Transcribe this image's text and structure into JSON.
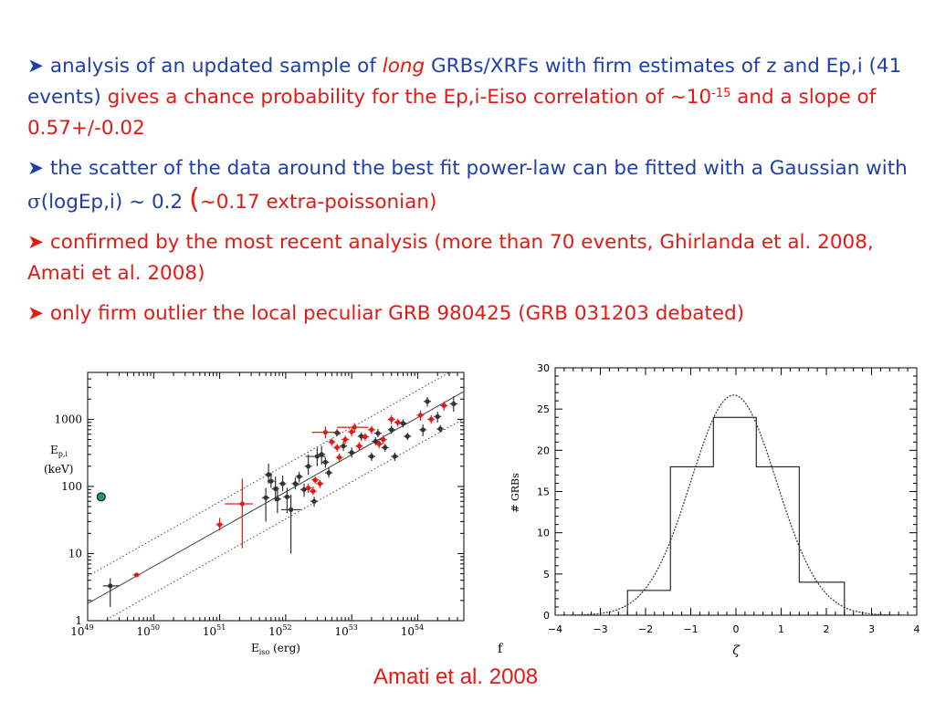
{
  "bullets": [
    {
      "arrow": "➤",
      "segments": [
        {
          "text": " analysis of an updated sample of ",
          "color": "blue"
        },
        {
          "text": "long",
          "color": "red",
          "italic": true
        },
        {
          "text": " GRBs/XRFs with firm estimates of z and Ep,i (41 events) ",
          "color": "blue"
        },
        {
          "text": "gives a chance probability for the Ep,i-Eiso correlation of ~10",
          "color": "red"
        },
        {
          "text": "-15",
          "color": "red",
          "sup": true
        },
        {
          "text": " and a slope of 0.57+/-0.02",
          "color": "red"
        }
      ]
    },
    {
      "arrow": "➤",
      "segments": [
        {
          "text": " the scatter of the data around the best fit power-law can be fitted with a Gaussian with ",
          "color": "blue"
        },
        {
          "text": "σ",
          "color": "blue",
          "sigma": true
        },
        {
          "text": "(logEp,i) ~ 0.2 ",
          "color": "blue"
        },
        {
          "text": "(",
          "color": "red",
          "big": true
        },
        {
          "text": "~0.17 extra-poissonian)",
          "color": "red"
        }
      ]
    },
    {
      "arrow": "➤",
      "segments": [
        {
          "text": " confirmed by the most recent analysis (more than 70 events, Ghirlanda et al. 2008, Amati et al. 2008)",
          "color": "red"
        }
      ]
    },
    {
      "arrow": "➤",
      "segments": [
        {
          "text": " only firm outlier the local peculiar GRB 980425 (GRB 031203 debated)",
          "color": "red"
        }
      ]
    }
  ],
  "credit": "Amati et al. 2008",
  "stray_mark": "f",
  "colors": {
    "blue": "#1f3fa8",
    "red": "#e21a14",
    "outlier": "#1a9a78"
  },
  "chart_data": [
    {
      "type": "scatter",
      "xscale": "log",
      "yscale": "log",
      "xlim": [
        1e+49,
        5e+54
      ],
      "ylim": [
        1,
        5000
      ],
      "x_ticks": [
        {
          "value": 1e+49,
          "base": "10",
          "exp": "49"
        },
        {
          "value": 1e+50,
          "base": "10",
          "exp": "50"
        },
        {
          "value": 1e+51,
          "base": "10",
          "exp": "51"
        },
        {
          "value": 1e+52,
          "base": "10",
          "exp": "52"
        },
        {
          "value": 1e+53,
          "base": "10",
          "exp": "53"
        },
        {
          "value": 1e+54,
          "base": "10",
          "exp": "54"
        }
      ],
      "y_ticks": [
        {
          "value": 1,
          "label": "1"
        },
        {
          "value": 10,
          "label": "10"
        },
        {
          "value": 100,
          "label": "100"
        },
        {
          "value": 1000,
          "label": "1000"
        }
      ],
      "xlabel": {
        "main": "E",
        "sub": "iso",
        "unit": " (erg)"
      },
      "ylabel": {
        "main": "E",
        "sub": "p,i",
        "unit": "(keV)"
      },
      "fit_lines": [
        {
          "name": "best fit",
          "style": "solid",
          "points": [
            [
              1e+49,
              1.8
            ],
            [
              5e+54,
              2600
            ]
          ]
        },
        {
          "name": "upper",
          "style": "dotted",
          "points": [
            [
              1e+49,
              4.6
            ],
            [
              5e+54,
              6600
            ]
          ]
        },
        {
          "name": "lower",
          "style": "dotted",
          "points": [
            [
              1e+49,
              0.72
            ],
            [
              5e+54,
              1020
            ]
          ]
        }
      ],
      "series": [
        {
          "color": "black",
          "points": [
            {
              "x": 2.2e+49,
              "y": 3.3,
              "ylo": 1.6,
              "yhi": 4.3,
              "xlo": 1.7e+49,
              "xhi": 3e+49
            },
            {
              "x": 5e+51,
              "y": 68,
              "ylo": 30,
              "yhi": 95
            },
            {
              "x": 5.5e+51,
              "y": 150,
              "ylo": 110,
              "yhi": 220
            },
            {
              "x": 6e+51,
              "y": 120,
              "ylo": 95,
              "yhi": 160
            },
            {
              "x": 7e+51,
              "y": 92,
              "ylo": 60,
              "yhi": 140
            },
            {
              "x": 7.5e+51,
              "y": 65,
              "ylo": 40,
              "yhi": 100
            },
            {
              "x": 9e+51,
              "y": 110,
              "ylo": 85,
              "yhi": 145
            },
            {
              "x": 1.05e+52,
              "y": 70,
              "ylo": 40,
              "yhi": 95
            },
            {
              "x": 1.2e+52,
              "y": 45,
              "ylo": 10,
              "yhi": 75,
              "xlo": 8.5e+51,
              "xhi": 1.7e+52
            },
            {
              "x": 1.4e+52,
              "y": 110,
              "ylo": 90,
              "yhi": 135
            },
            {
              "x": 1.6e+52,
              "y": 140,
              "ylo": 115,
              "yhi": 165
            },
            {
              "x": 1.9e+52,
              "y": 90,
              "ylo": 70,
              "yhi": 110
            },
            {
              "x": 2.2e+52,
              "y": 200,
              "ylo": 150,
              "yhi": 300
            },
            {
              "x": 2.7e+52,
              "y": 60,
              "ylo": 50,
              "yhi": 70
            },
            {
              "x": 3e+52,
              "y": 280,
              "ylo": 200,
              "yhi": 380,
              "xlo": 2e+52,
              "xhi": 4e+52
            },
            {
              "x": 3.5e+52,
              "y": 300,
              "ylo": 210,
              "yhi": 400
            },
            {
              "x": 4e+52,
              "y": 230,
              "ylo": 190,
              "yhi": 270
            },
            {
              "x": 4.5e+52,
              "y": 160,
              "ylo": 135,
              "yhi": 190
            },
            {
              "x": 6e+52,
              "y": 630,
              "ylo": 560,
              "yhi": 710
            },
            {
              "x": 7.5e+52,
              "y": 400,
              "ylo": 340,
              "yhi": 470
            },
            {
              "x": 1e+53,
              "y": 320,
              "ylo": 270,
              "yhi": 380
            },
            {
              "x": 1.4e+53,
              "y": 560,
              "ylo": 480,
              "yhi": 640
            },
            {
              "x": 2e+53,
              "y": 280,
              "ylo": 240,
              "yhi": 320
            },
            {
              "x": 2.3e+53,
              "y": 470,
              "ylo": 410,
              "yhi": 540
            },
            {
              "x": 2.5e+53,
              "y": 620,
              "ylo": 540,
              "yhi": 720
            },
            {
              "x": 3.2e+53,
              "y": 380,
              "ylo": 330,
              "yhi": 430
            },
            {
              "x": 4e+53,
              "y": 700,
              "ylo": 610,
              "yhi": 800
            },
            {
              "x": 4.5e+53,
              "y": 280,
              "ylo": 240,
              "yhi": 320
            },
            {
              "x": 6e+53,
              "y": 870,
              "ylo": 760,
              "yhi": 1000
            },
            {
              "x": 7e+53,
              "y": 560,
              "ylo": 490,
              "yhi": 630
            },
            {
              "x": 1.2e+54,
              "y": 700,
              "ylo": 560,
              "yhi": 840
            },
            {
              "x": 1.4e+54,
              "y": 1850,
              "ylo": 1550,
              "yhi": 2150
            },
            {
              "x": 2e+54,
              "y": 1100,
              "ylo": 900,
              "yhi": 1300
            },
            {
              "x": 2.2e+54,
              "y": 720,
              "ylo": 630,
              "yhi": 820
            },
            {
              "x": 3.5e+54,
              "y": 1700,
              "ylo": 1300,
              "yhi": 2200
            }
          ]
        },
        {
          "color": "red",
          "points": [
            {
              "x": 5.5e+49,
              "y": 4.8,
              "ylo": 4.6,
              "yhi": 5.0
            },
            {
              "x": 1e+51,
              "y": 27,
              "ylo": 22,
              "yhi": 34
            },
            {
              "x": 2.2e+51,
              "y": 55,
              "ylo": 12,
              "yhi": 130,
              "xlo": 1.2e+51,
              "xhi": 3.2e+51
            },
            {
              "x": 2.2e+52,
              "y": 95,
              "ylo": 80,
              "yhi": 110
            },
            {
              "x": 2.6e+52,
              "y": 85,
              "ylo": 75,
              "yhi": 100
            },
            {
              "x": 2.8e+52,
              "y": 125,
              "ylo": 110,
              "yhi": 140
            },
            {
              "x": 3.3e+52,
              "y": 110,
              "ylo": 95,
              "yhi": 125
            },
            {
              "x": 4e+52,
              "y": 640,
              "ylo": 520,
              "yhi": 780,
              "xlo": 2.5e+52,
              "xhi": 6e+52
            },
            {
              "x": 5e+52,
              "y": 460,
              "ylo": 400,
              "yhi": 520
            },
            {
              "x": 6e+52,
              "y": 380,
              "ylo": 330,
              "yhi": 430
            },
            {
              "x": 6.5e+52,
              "y": 270,
              "ylo": 230,
              "yhi": 310
            },
            {
              "x": 8e+52,
              "y": 500,
              "ylo": 430,
              "yhi": 570
            },
            {
              "x": 1e+53,
              "y": 650,
              "ylo": 560,
              "yhi": 740
            },
            {
              "x": 1.1e+53,
              "y": 760,
              "ylo": 650,
              "yhi": 880,
              "xlo": 6e+52,
              "xhi": 1.8e+53
            },
            {
              "x": 1.3e+53,
              "y": 400,
              "ylo": 340,
              "yhi": 460
            },
            {
              "x": 1.6e+53,
              "y": 550,
              "ylo": 480,
              "yhi": 620
            },
            {
              "x": 2e+53,
              "y": 700,
              "ylo": 610,
              "yhi": 800
            },
            {
              "x": 2.6e+53,
              "y": 430,
              "ylo": 370,
              "yhi": 490
            },
            {
              "x": 3e+53,
              "y": 500,
              "ylo": 430,
              "yhi": 580
            },
            {
              "x": 4e+53,
              "y": 1000,
              "ylo": 850,
              "yhi": 1150
            },
            {
              "x": 5e+53,
              "y": 900,
              "ylo": 780,
              "yhi": 1020
            },
            {
              "x": 1.1e+54,
              "y": 1150,
              "ylo": 950,
              "yhi": 1350
            },
            {
              "x": 1.6e+54,
              "y": 1000,
              "ylo": 860,
              "yhi": 1150
            },
            {
              "x": 2.5e+54,
              "y": 1600,
              "ylo": 1350,
              "yhi": 1850
            }
          ]
        }
      ],
      "outlier": {
        "x": 1.6e+49,
        "y": 70
      }
    },
    {
      "type": "bar",
      "subtype": "histogram",
      "xlabel": "ζ",
      "ylabel": "# GRBs",
      "xlim": [
        -4,
        4
      ],
      "ylim": [
        0,
        30
      ],
      "x_ticks": [
        "−4",
        "−3",
        "−2",
        "−1",
        "0",
        "1",
        "2",
        "3",
        "4"
      ],
      "y_ticks": [
        "0",
        "5",
        "10",
        "15",
        "20",
        "25",
        "30"
      ],
      "bins": [
        {
          "x0": -2.4,
          "x1": -1.45,
          "value": 3
        },
        {
          "x0": -1.45,
          "x1": -0.5,
          "value": 18
        },
        {
          "x0": -0.5,
          "x1": 0.45,
          "value": 24
        },
        {
          "x0": 0.45,
          "x1": 1.4,
          "value": 18
        },
        {
          "x0": 1.4,
          "x1": 2.4,
          "value": 4
        }
      ],
      "gaussian": {
        "amplitude": 26.7,
        "mean": -0.05,
        "sigma": 0.95
      }
    }
  ]
}
